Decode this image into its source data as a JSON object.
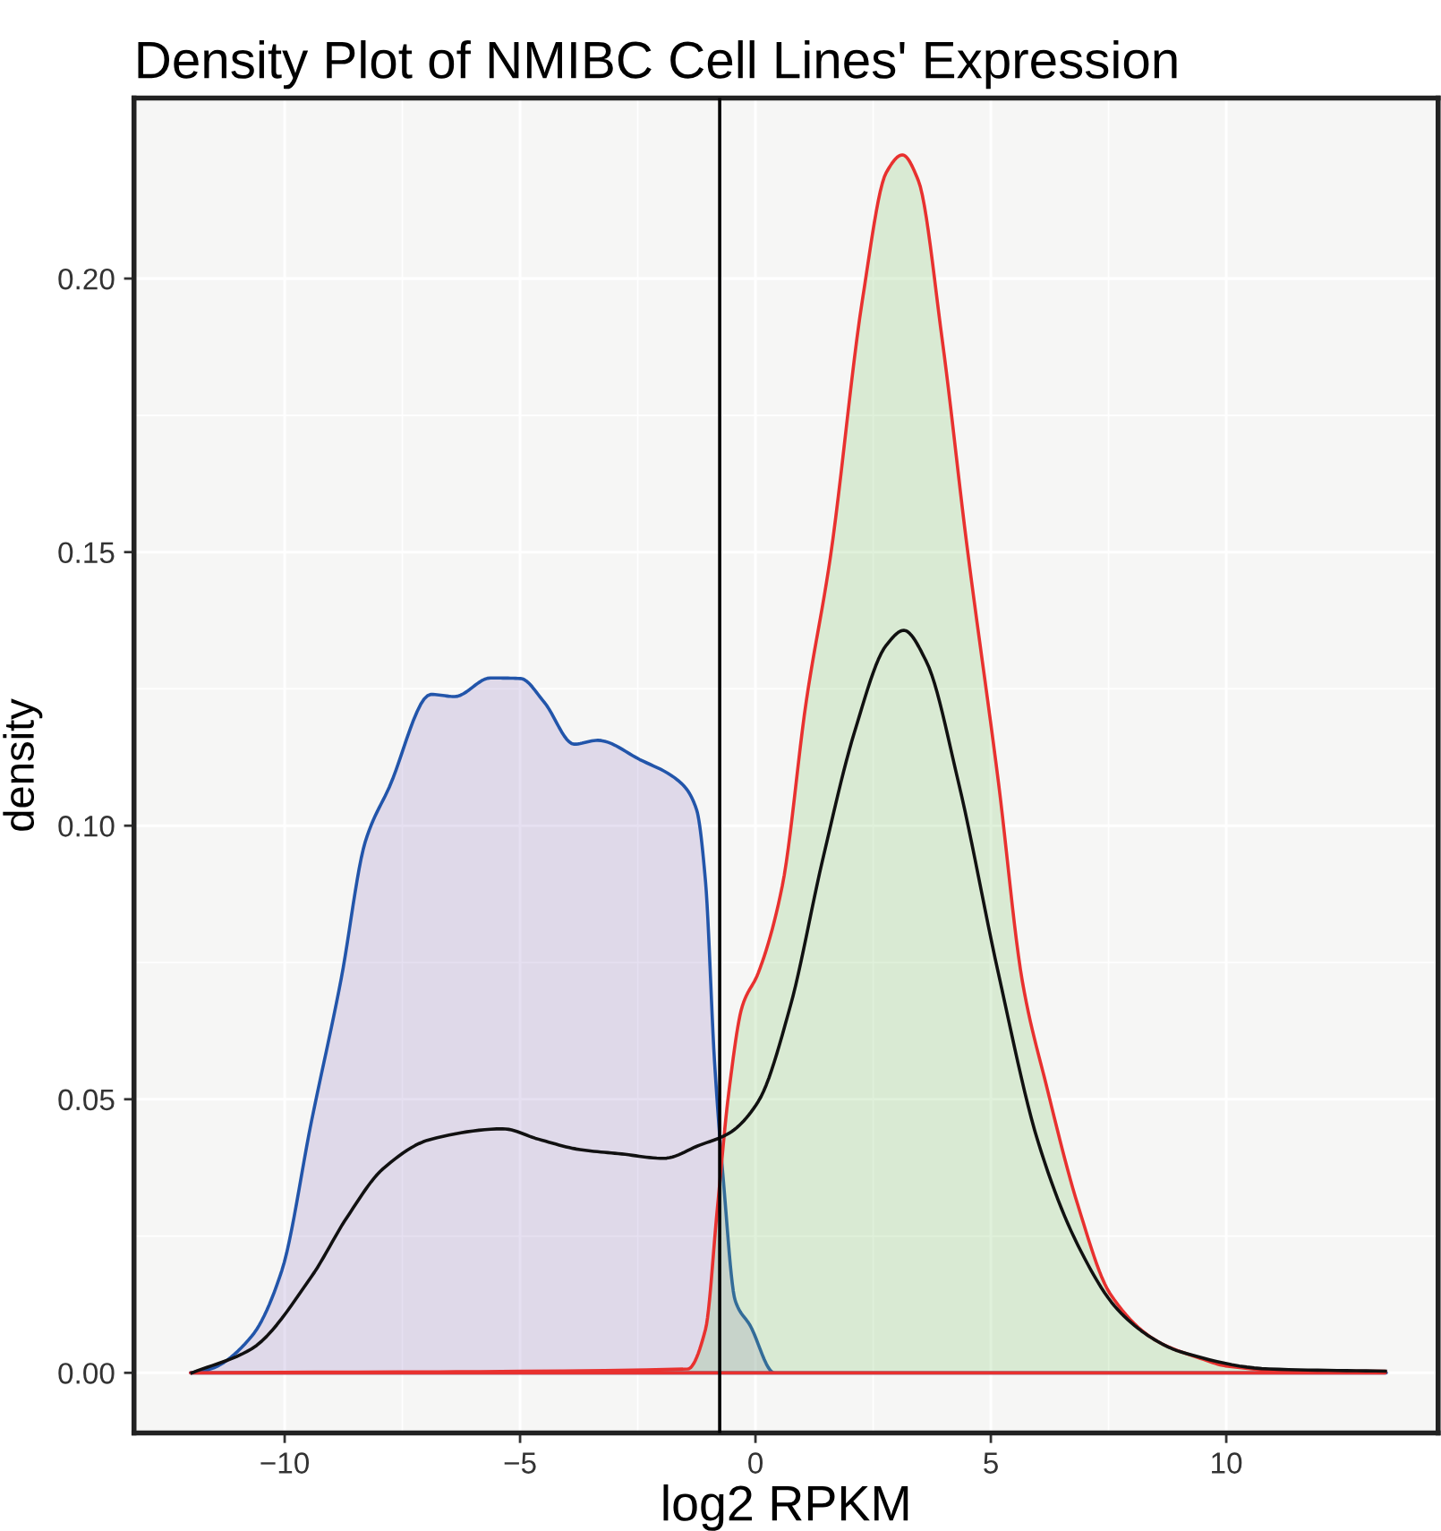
{
  "chart_data": {
    "type": "area",
    "title": "Density Plot of NMIBC Cell Lines' Expression",
    "xlabel": "log2 RPKM",
    "ylabel": "density",
    "xlim": [
      -13.2,
      14.5
    ],
    "ylim": [
      -0.011,
      0.233
    ],
    "xticks": [
      {
        "value": -10,
        "label": "−10"
      },
      {
        "value": -5,
        "label": "−5"
      },
      0,
      5,
      10
    ],
    "yticks": [
      {
        "value": 0,
        "label": "0.00"
      },
      {
        "value": 0.05,
        "label": "0.05"
      },
      {
        "value": 0.1,
        "label": "0.10"
      },
      {
        "value": 0.15,
        "label": "0.15"
      },
      {
        "value": 0.2,
        "label": "0.20"
      }
    ],
    "grid": true,
    "ref_lines": [
      {
        "axis": "x",
        "value": -0.76,
        "color": "#000000"
      }
    ],
    "series": [
      {
        "type": "area",
        "color": "#2255aa",
        "x": [
          -12.0,
          -11.58,
          -10.7,
          -10.06,
          -9.43,
          -8.8,
          -8.29,
          -7.78,
          -6.89,
          -6.39,
          -5.63,
          -4.99,
          -4.49,
          -3.85,
          -3.35,
          -2.46,
          -1.57,
          -1.25,
          -1.06,
          -0.87,
          -0.68,
          -0.43,
          -0.11,
          0.4,
          2.0,
          13.4
        ],
        "values": [
          0,
          0.0007,
          0.0067,
          0.0187,
          0.046,
          0.072,
          0.097,
          0.107,
          0.124,
          0.1236,
          0.127,
          0.1269,
          0.1226,
          0.1149,
          0.1156,
          0.1121,
          0.1077,
          0.1029,
          0.0897,
          0.057,
          0.035,
          0.0132,
          0.0086,
          0,
          0,
          0
        ]
      },
      {
        "type": "area",
        "color": "#e8312f",
        "x": [
          -12.0,
          -1.44,
          -1.06,
          -0.81,
          -0.57,
          -0.28,
          0.06,
          0.57,
          1.08,
          1.59,
          2.27,
          2.78,
          3.12,
          3.46,
          3.97,
          4.48,
          5.16,
          5.67,
          6.18,
          6.85,
          7.53,
          8.55,
          9.4,
          10.03,
          11.55,
          13.38
        ],
        "values": [
          0,
          0.0007,
          0.008,
          0.03,
          0.051,
          0.067,
          0.0731,
          0.089,
          0.1228,
          0.149,
          0.196,
          0.2194,
          0.2226,
          0.2179,
          0.1886,
          0.152,
          0.108,
          0.0715,
          0.0525,
          0.0306,
          0.0145,
          0.0057,
          0.0028,
          0.0012,
          0.0003,
          0.0003
        ]
      },
      {
        "type": "line",
        "color": "#111111",
        "x": [
          -11.97,
          -10.7,
          -9.43,
          -8.67,
          -7.91,
          -6.89,
          -5.37,
          -4.61,
          -3.73,
          -2.84,
          -1.95,
          -1.19,
          -0.56,
          0.06,
          0.74,
          1.42,
          2.1,
          2.78,
          3.15,
          3.63,
          4.31,
          5.16,
          6.0,
          6.85,
          7.7,
          8.55,
          9.01,
          10.91,
          13.38
        ],
        "values": [
          0,
          0.0044,
          0.0176,
          0.0285,
          0.0373,
          0.0427,
          0.0446,
          0.0427,
          0.0408,
          0.04,
          0.0392,
          0.0416,
          0.0438,
          0.0496,
          0.067,
          0.0935,
          0.117,
          0.133,
          0.1357,
          0.13,
          0.108,
          0.073,
          0.0423,
          0.0233,
          0.0115,
          0.0057,
          0.0039,
          0.0007,
          0.0003
        ]
      }
    ]
  }
}
